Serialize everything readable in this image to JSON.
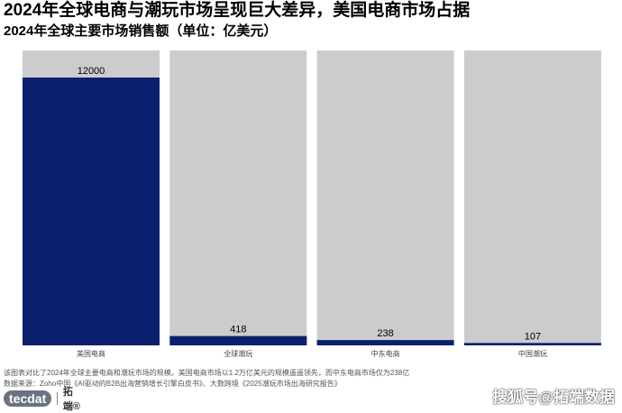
{
  "chart_data": {
    "type": "bar",
    "title": "2024年全球电商与潮玩市场呈现巨大差异，美国电商市场占据",
    "subtitle": "2024年全球主要市场销售额（单位：亿美元）",
    "categories": [
      "美国电商",
      "全球潮玩",
      "中东电商",
      "中国潮玩"
    ],
    "values": [
      12000,
      418,
      238,
      107
    ],
    "data_labels": [
      "12000",
      "418",
      "238",
      "107"
    ],
    "ylim": [
      0,
      12000
    ],
    "grid": false,
    "legend": "none",
    "colors": {
      "bar": "#0b1f6e",
      "background_bar": "#cccccc"
    }
  },
  "footer": {
    "note": "该图表对比了2024年全球主要电商和潮玩市场的规模。美国电商市场以1.2万亿美元的规模遥遥领先，而中东电商市场仅为238亿",
    "source": "数据来源：Zoho中国《AI驱动的B2B出海营销增长引擎白皮书》、大数跨境《2025潮玩市场出海研究报告》",
    "logo_mark": "tecdat",
    "logo_text": "拓端®",
    "watermark": "搜狐号@拓端数据"
  }
}
